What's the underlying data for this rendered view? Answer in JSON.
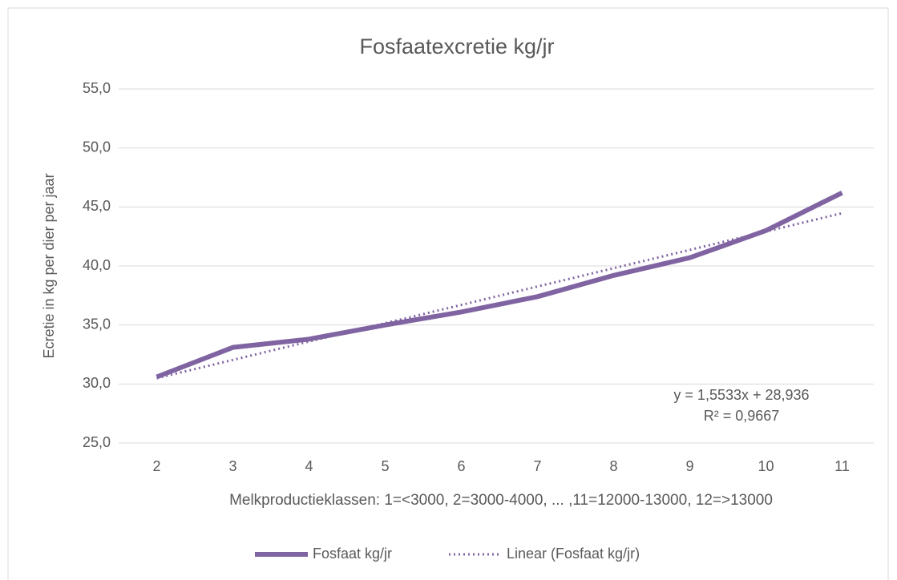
{
  "chart_data": {
    "type": "line",
    "title": "Fosfaatexcretie kg/jr",
    "y_label": "Ecretie in kg per dier per jaar",
    "x_label": "Melkproductieklassen: 1=<3000, 2=3000-4000, ... ,11=12000-13000, 12=>13000",
    "categories": [
      "2",
      "3",
      "4",
      "5",
      "6",
      "7",
      "8",
      "9",
      "10",
      "11"
    ],
    "series": [
      {
        "name": "Fosfaat kg/jr",
        "color": "#8064a2",
        "style": "solid",
        "values": [
          30.6,
          33.1,
          33.8,
          35.0,
          36.1,
          37.4,
          39.2,
          40.7,
          43.0,
          46.2
        ]
      },
      {
        "name": "Linear (Fosfaat kg/jr)",
        "color": "#8064a2",
        "style": "dotted",
        "values": [
          30.49,
          32.04,
          33.6,
          35.15,
          36.7,
          38.26,
          39.81,
          41.36,
          42.92,
          44.47
        ]
      }
    ],
    "annotations": [
      "y = 1,5533x + 28,936",
      "R² = 0,9667"
    ],
    "ylim": [
      25,
      55
    ],
    "yticks": [
      {
        "value": 25,
        "label": "25,0"
      },
      {
        "value": 30,
        "label": "30,0"
      },
      {
        "value": 35,
        "label": "35,0"
      },
      {
        "value": 40,
        "label": "40,0"
      },
      {
        "value": 45,
        "label": "45,0"
      },
      {
        "value": 50,
        "label": "50,0"
      },
      {
        "value": 55,
        "label": "55,0"
      }
    ],
    "grid": true,
    "legend": "bottom"
  }
}
